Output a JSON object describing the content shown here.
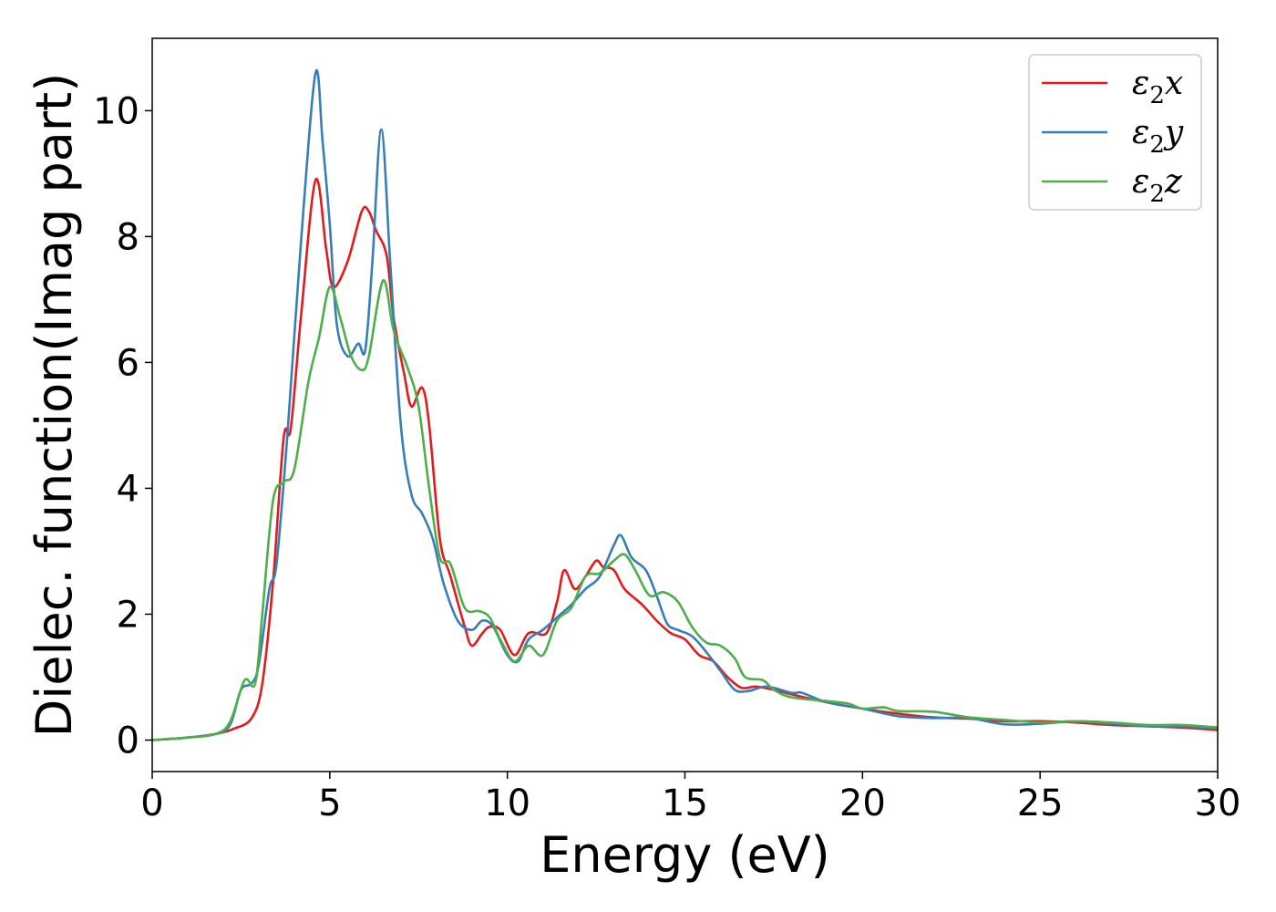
{
  "chart_data": {
    "type": "line",
    "xlabel": "Energy (eV)",
    "ylabel": "Dielec. function(Imag part)",
    "xlim": [
      0,
      30
    ],
    "ylim": [
      -0.5,
      11.15
    ],
    "xticks": [
      0,
      5,
      10,
      15,
      20,
      25,
      30
    ],
    "yticks": [
      0,
      2,
      4,
      6,
      8,
      10
    ],
    "grid": false,
    "legend_position": "top-right",
    "series": [
      {
        "name": "ε2x",
        "symbol": "ε",
        "subscript": "2",
        "suffix": "x",
        "color": "#e41a1c",
        "points": [
          [
            0,
            0
          ],
          [
            1,
            0.04
          ],
          [
            1.8,
            0.1
          ],
          [
            2.3,
            0.18
          ],
          [
            2.8,
            0.35
          ],
          [
            3.1,
            0.9
          ],
          [
            3.4,
            2.5
          ],
          [
            3.7,
            4.8
          ],
          [
            3.9,
            4.95
          ],
          [
            4.2,
            6.8
          ],
          [
            4.6,
            8.9
          ],
          [
            4.9,
            7.8
          ],
          [
            5.1,
            7.2
          ],
          [
            5.5,
            7.6
          ],
          [
            5.9,
            8.4
          ],
          [
            6.1,
            8.4
          ],
          [
            6.3,
            8.1
          ],
          [
            6.6,
            7.7
          ],
          [
            6.8,
            6.7
          ],
          [
            7.1,
            5.8
          ],
          [
            7.3,
            5.3
          ],
          [
            7.6,
            5.6
          ],
          [
            7.8,
            5.0
          ],
          [
            8.1,
            3.2
          ],
          [
            8.4,
            2.6
          ],
          [
            8.8,
            1.8
          ],
          [
            9.0,
            1.5
          ],
          [
            9.3,
            1.7
          ],
          [
            9.5,
            1.8
          ],
          [
            9.8,
            1.75
          ],
          [
            10.2,
            1.35
          ],
          [
            10.6,
            1.7
          ],
          [
            11.1,
            1.7
          ],
          [
            11.4,
            2.2
          ],
          [
            11.6,
            2.7
          ],
          [
            11.9,
            2.4
          ],
          [
            12.2,
            2.6
          ],
          [
            12.5,
            2.85
          ],
          [
            12.7,
            2.75
          ],
          [
            13.0,
            2.7
          ],
          [
            13.3,
            2.4
          ],
          [
            13.8,
            2.15
          ],
          [
            14.2,
            1.9
          ],
          [
            14.6,
            1.7
          ],
          [
            15.0,
            1.6
          ],
          [
            15.4,
            1.35
          ],
          [
            15.8,
            1.25
          ],
          [
            16.2,
            1.0
          ],
          [
            16.6,
            0.83
          ],
          [
            17.0,
            0.85
          ],
          [
            17.5,
            0.8
          ],
          [
            18.2,
            0.7
          ],
          [
            19.0,
            0.6
          ],
          [
            20.0,
            0.5
          ],
          [
            21.0,
            0.42
          ],
          [
            22.0,
            0.36
          ],
          [
            23.0,
            0.34
          ],
          [
            24.0,
            0.3
          ],
          [
            25.0,
            0.3
          ],
          [
            26.0,
            0.28
          ],
          [
            27.0,
            0.24
          ],
          [
            28.0,
            0.22
          ],
          [
            29.0,
            0.2
          ],
          [
            30.0,
            0.16
          ]
        ]
      },
      {
        "name": "ε2y",
        "symbol": "ε",
        "subscript": "2",
        "suffix": "y",
        "color": "#377eb8",
        "points": [
          [
            0,
            0
          ],
          [
            1,
            0.04
          ],
          [
            1.8,
            0.1
          ],
          [
            2.2,
            0.25
          ],
          [
            2.5,
            0.8
          ],
          [
            2.8,
            0.9
          ],
          [
            3.0,
            1.2
          ],
          [
            3.3,
            2.4
          ],
          [
            3.5,
            2.8
          ],
          [
            3.8,
            4.8
          ],
          [
            4.2,
            8.0
          ],
          [
            4.6,
            10.6
          ],
          [
            4.8,
            9.5
          ],
          [
            5.0,
            8.2
          ],
          [
            5.2,
            6.6
          ],
          [
            5.5,
            6.1
          ],
          [
            5.8,
            6.3
          ],
          [
            6.0,
            6.2
          ],
          [
            6.2,
            7.6
          ],
          [
            6.45,
            9.7
          ],
          [
            6.7,
            7.6
          ],
          [
            7.0,
            5.0
          ],
          [
            7.3,
            3.9
          ],
          [
            7.6,
            3.6
          ],
          [
            7.9,
            3.2
          ],
          [
            8.2,
            2.5
          ],
          [
            8.6,
            1.9
          ],
          [
            9.0,
            1.75
          ],
          [
            9.3,
            1.9
          ],
          [
            9.6,
            1.8
          ],
          [
            10.0,
            1.35
          ],
          [
            10.3,
            1.25
          ],
          [
            10.6,
            1.6
          ],
          [
            11.0,
            1.75
          ],
          [
            11.5,
            2.0
          ],
          [
            11.8,
            2.15
          ],
          [
            12.2,
            2.4
          ],
          [
            12.6,
            2.6
          ],
          [
            13.0,
            3.1
          ],
          [
            13.2,
            3.25
          ],
          [
            13.5,
            2.9
          ],
          [
            13.9,
            2.7
          ],
          [
            14.2,
            2.3
          ],
          [
            14.5,
            1.85
          ],
          [
            14.8,
            1.75
          ],
          [
            15.2,
            1.65
          ],
          [
            15.6,
            1.4
          ],
          [
            16.0,
            1.1
          ],
          [
            16.4,
            0.8
          ],
          [
            16.8,
            0.78
          ],
          [
            17.3,
            0.85
          ],
          [
            18.0,
            0.75
          ],
          [
            18.3,
            0.75
          ],
          [
            19.0,
            0.6
          ],
          [
            20.0,
            0.5
          ],
          [
            21.0,
            0.38
          ],
          [
            22.0,
            0.35
          ],
          [
            23.0,
            0.35
          ],
          [
            24.0,
            0.25
          ],
          [
            25.0,
            0.26
          ],
          [
            26.0,
            0.3
          ],
          [
            27.0,
            0.26
          ],
          [
            28.0,
            0.22
          ],
          [
            29.0,
            0.22
          ],
          [
            30.0,
            0.18
          ]
        ]
      },
      {
        "name": "ε2z",
        "symbol": "ε",
        "subscript": "2",
        "suffix": "z",
        "color": "#4daf4a",
        "points": [
          [
            0,
            0
          ],
          [
            1,
            0.04
          ],
          [
            1.8,
            0.1
          ],
          [
            2.2,
            0.3
          ],
          [
            2.6,
            0.95
          ],
          [
            2.9,
            0.9
          ],
          [
            3.1,
            2.0
          ],
          [
            3.4,
            3.8
          ],
          [
            3.7,
            4.1
          ],
          [
            4.0,
            4.3
          ],
          [
            4.4,
            5.7
          ],
          [
            4.7,
            6.4
          ],
          [
            5.0,
            7.2
          ],
          [
            5.3,
            6.7
          ],
          [
            5.6,
            6.1
          ],
          [
            5.9,
            5.88
          ],
          [
            6.1,
            6.1
          ],
          [
            6.5,
            7.3
          ],
          [
            6.8,
            6.5
          ],
          [
            7.2,
            5.9
          ],
          [
            7.5,
            5.3
          ],
          [
            7.8,
            4.0
          ],
          [
            8.1,
            2.9
          ],
          [
            8.4,
            2.8
          ],
          [
            8.8,
            2.1
          ],
          [
            9.2,
            2.05
          ],
          [
            9.5,
            1.95
          ],
          [
            9.8,
            1.6
          ],
          [
            10.2,
            1.25
          ],
          [
            10.6,
            1.5
          ],
          [
            11.0,
            1.35
          ],
          [
            11.4,
            1.9
          ],
          [
            11.8,
            2.1
          ],
          [
            12.2,
            2.6
          ],
          [
            12.6,
            2.65
          ],
          [
            13.0,
            2.85
          ],
          [
            13.3,
            2.95
          ],
          [
            13.6,
            2.7
          ],
          [
            14.0,
            2.3
          ],
          [
            14.4,
            2.35
          ],
          [
            14.8,
            2.2
          ],
          [
            15.2,
            1.8
          ],
          [
            15.6,
            1.55
          ],
          [
            16.0,
            1.5
          ],
          [
            16.4,
            1.3
          ],
          [
            16.7,
            1.0
          ],
          [
            17.2,
            0.95
          ],
          [
            17.5,
            0.8
          ],
          [
            18.0,
            0.68
          ],
          [
            19.0,
            0.62
          ],
          [
            19.6,
            0.58
          ],
          [
            20.0,
            0.5
          ],
          [
            20.6,
            0.52
          ],
          [
            21.0,
            0.46
          ],
          [
            22.0,
            0.45
          ],
          [
            23.0,
            0.36
          ],
          [
            24.0,
            0.32
          ],
          [
            25.0,
            0.28
          ],
          [
            26.0,
            0.3
          ],
          [
            27.0,
            0.28
          ],
          [
            28.0,
            0.24
          ],
          [
            29.0,
            0.24
          ],
          [
            30.0,
            0.2
          ]
        ]
      }
    ]
  }
}
